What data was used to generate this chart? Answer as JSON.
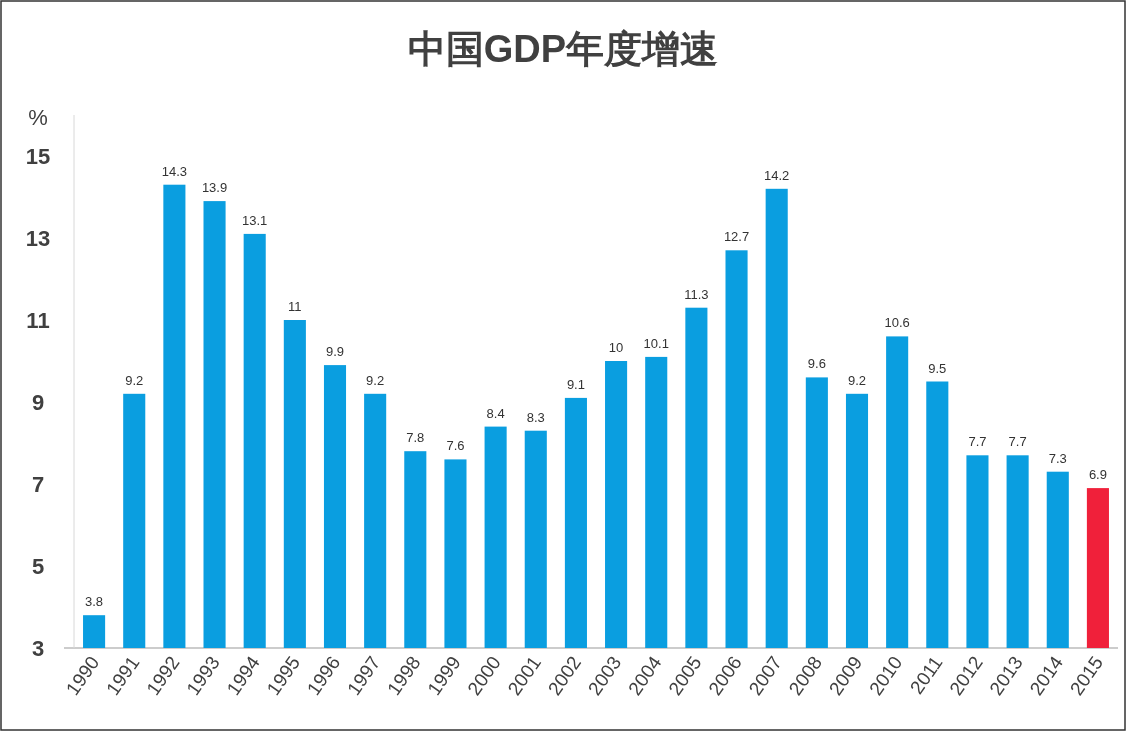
{
  "chart_data": {
    "type": "bar",
    "title": "中国GDP年度增速",
    "ylabel": "%",
    "categories": [
      "1990",
      "1991",
      "1992",
      "1993",
      "1994",
      "1995",
      "1996",
      "1997",
      "1998",
      "1999",
      "2000",
      "2001",
      "2002",
      "2003",
      "2004",
      "2005",
      "2006",
      "2007",
      "2008",
      "2009",
      "2010",
      "2011",
      "2012",
      "2013",
      "2014",
      "2015"
    ],
    "values": [
      3.8,
      9.2,
      14.3,
      13.9,
      13.1,
      11,
      9.9,
      9.2,
      7.8,
      7.6,
      8.4,
      8.3,
      9.1,
      10,
      10.1,
      11.3,
      12.7,
      14.2,
      9.6,
      9.2,
      10.6,
      9.5,
      7.7,
      7.7,
      7.3,
      6.9
    ],
    "colors": [
      "#0a9ee0",
      "#0a9ee0",
      "#0a9ee0",
      "#0a9ee0",
      "#0a9ee0",
      "#0a9ee0",
      "#0a9ee0",
      "#0a9ee0",
      "#0a9ee0",
      "#0a9ee0",
      "#0a9ee0",
      "#0a9ee0",
      "#0a9ee0",
      "#0a9ee0",
      "#0a9ee0",
      "#0a9ee0",
      "#0a9ee0",
      "#0a9ee0",
      "#0a9ee0",
      "#0a9ee0",
      "#0a9ee0",
      "#0a9ee0",
      "#0a9ee0",
      "#0a9ee0",
      "#0a9ee0",
      "#f0203a"
    ],
    "ylim": [
      3,
      16
    ],
    "yticks": [
      3,
      5,
      7,
      9,
      11,
      13,
      15
    ],
    "data_labels": true,
    "grid": false
  }
}
